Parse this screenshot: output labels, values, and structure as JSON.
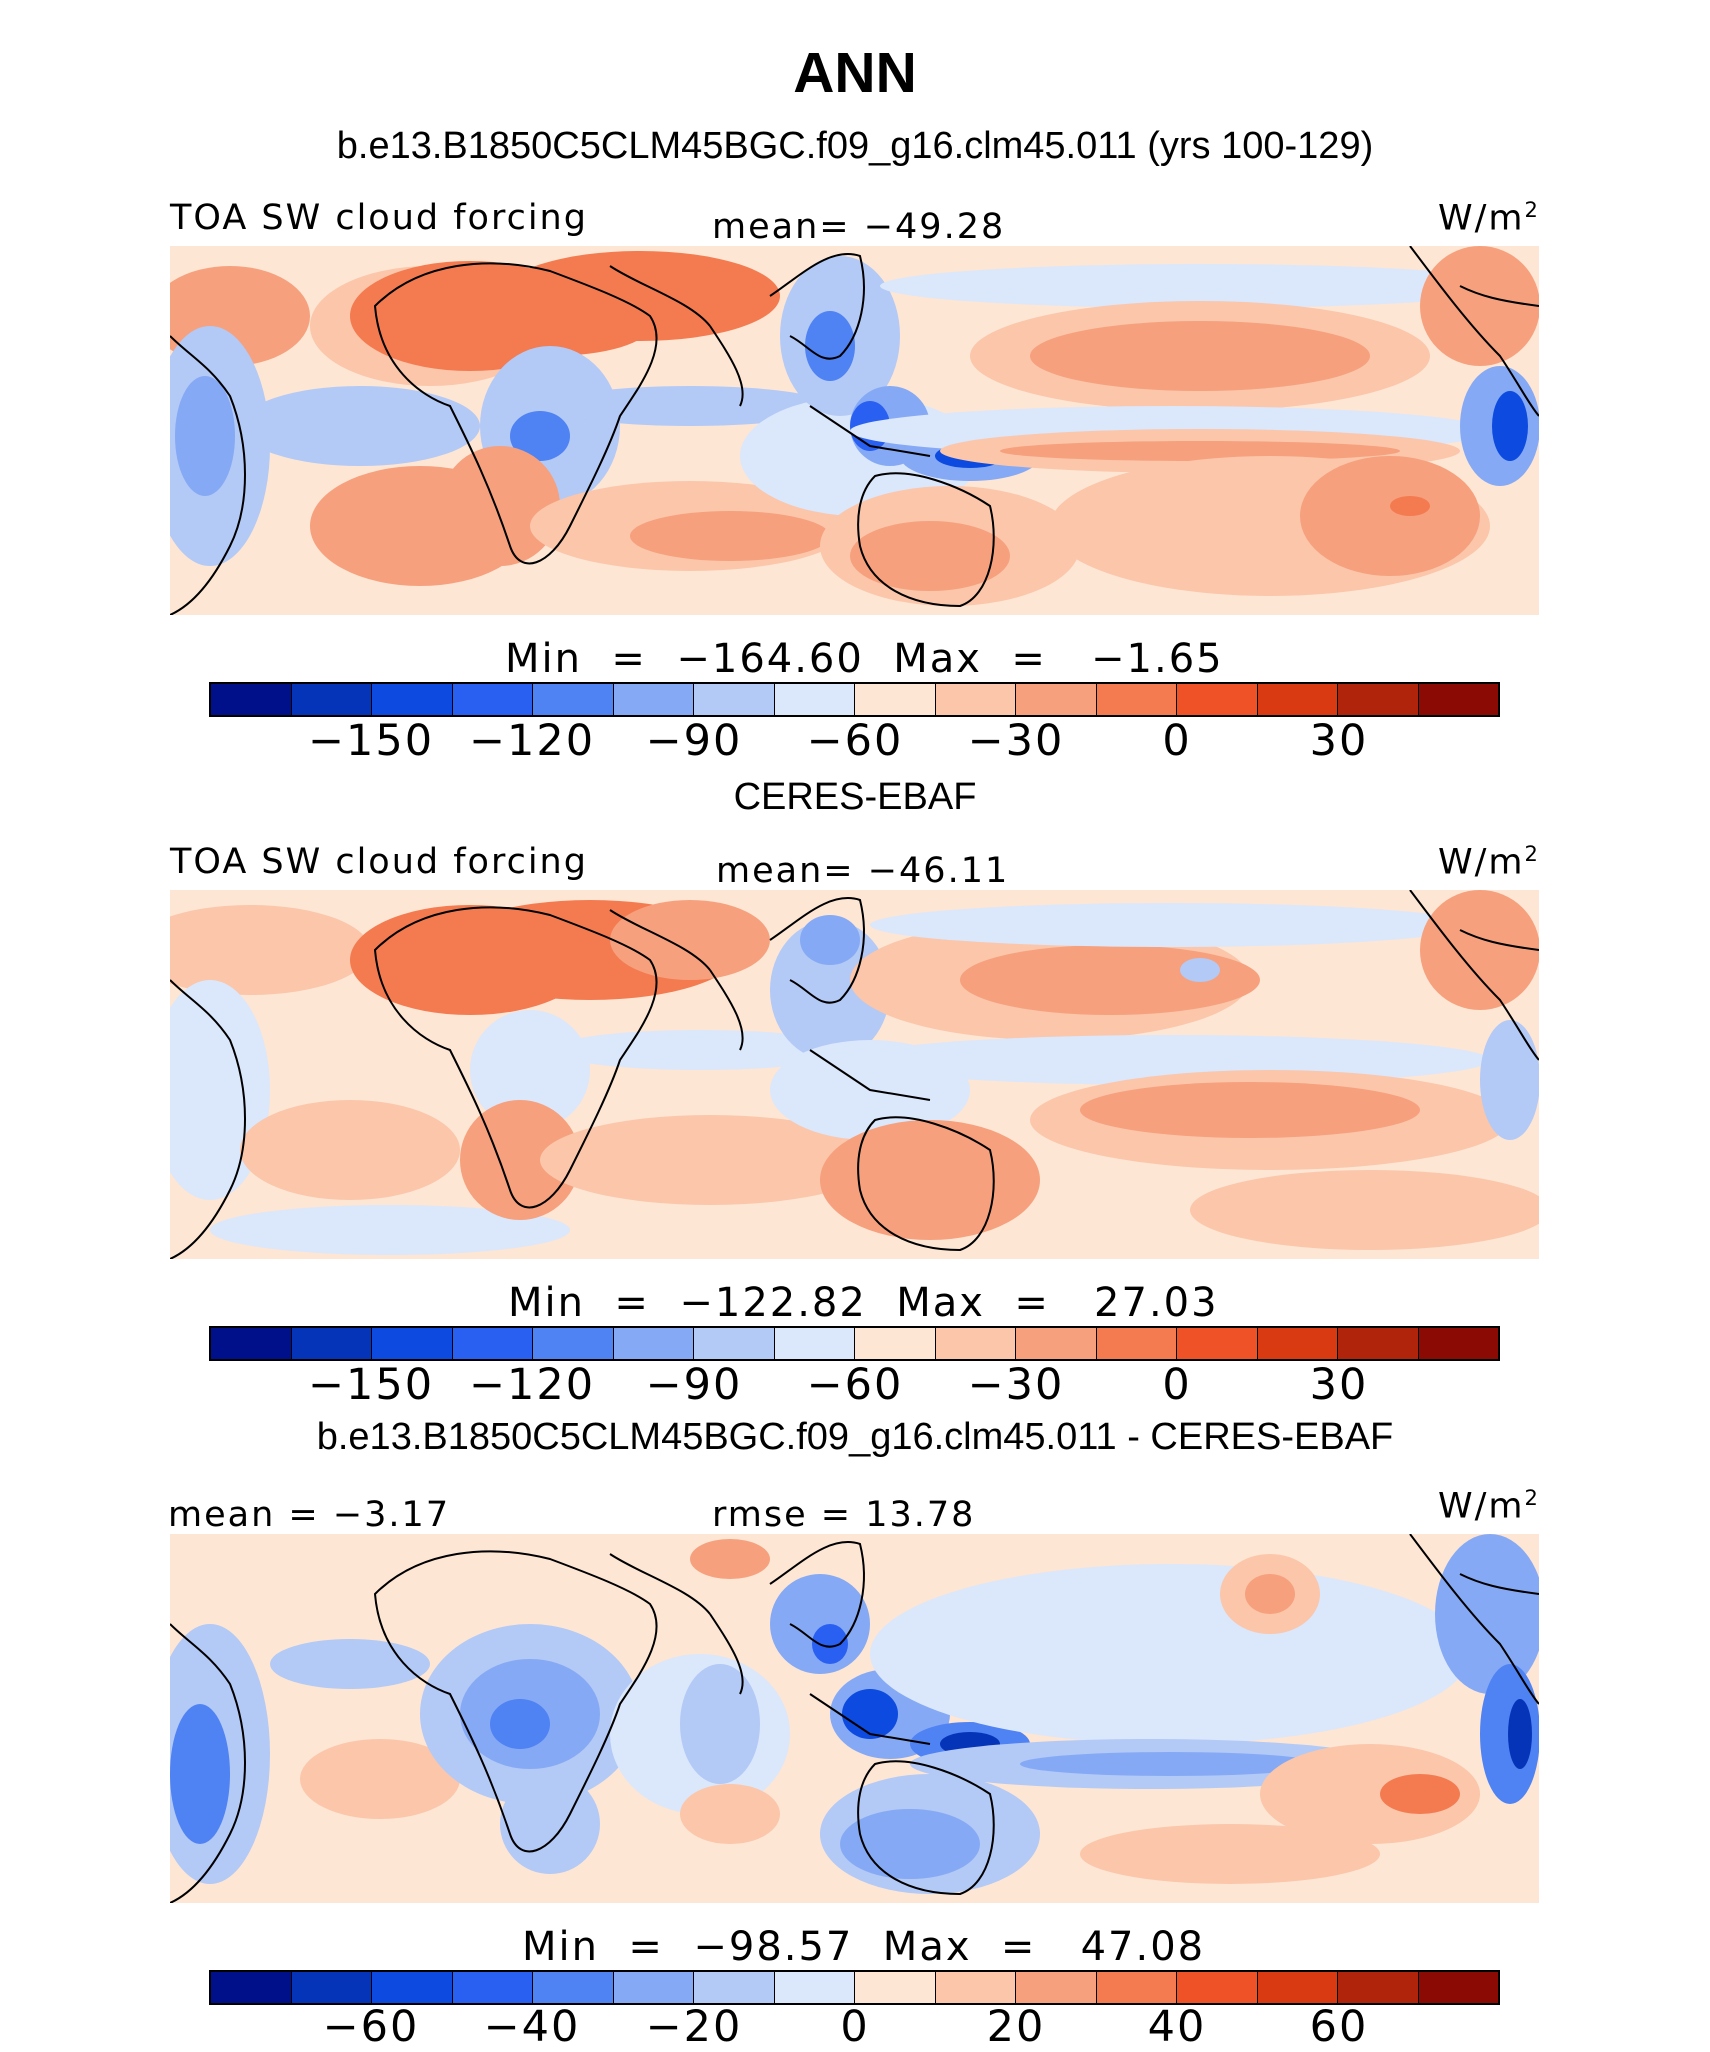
{
  "title": "ANN",
  "palette": [
    "#00108a",
    "#0534b8",
    "#0c4ae0",
    "#2960f2",
    "#4f82f2",
    "#85a9f4",
    "#b3c9f6",
    "#dbe7fb",
    "#fde6d4",
    "#fbc6aa",
    "#f6a07d",
    "#f47a50",
    "#ef5226",
    "#d93a12",
    "#b0240c",
    "#8c0a04"
  ],
  "panels": [
    {
      "heading": "b.e13.B1850C5CLM45BGC.f09_g16.clm45.011 (yrs 100-129)",
      "left_label": "TOA SW cloud forcing",
      "center_label": "mean= −49.28",
      "units": "W/m",
      "units_exp": "2",
      "stats": "Min  =  −164.60  Max  =   −1.65",
      "ticks": [
        "−150",
        "−120",
        "−90",
        "−60",
        "−30",
        "0",
        "30"
      ]
    },
    {
      "heading": "CERES-EBAF",
      "left_label": "TOA SW cloud forcing",
      "center_label": "mean= −46.11",
      "units": "W/m",
      "units_exp": "2",
      "stats": "Min  =  −122.82  Max  =   27.03",
      "ticks": [
        "−150",
        "−120",
        "−90",
        "−60",
        "−30",
        "0",
        "30"
      ]
    },
    {
      "heading": "b.e13.B1850C5CLM45BGC.f09_g16.clm45.011 - CERES-EBAF",
      "left_label": "mean  =   −3.17",
      "center_label": "rmse  =   13.78",
      "units": "W/m",
      "units_exp": "2",
      "stats": "Min  =  −98.57  Max  =   47.08",
      "ticks": [
        "−60",
        "−40",
        "−20",
        "0",
        "20",
        "40",
        "60"
      ]
    }
  ]
}
